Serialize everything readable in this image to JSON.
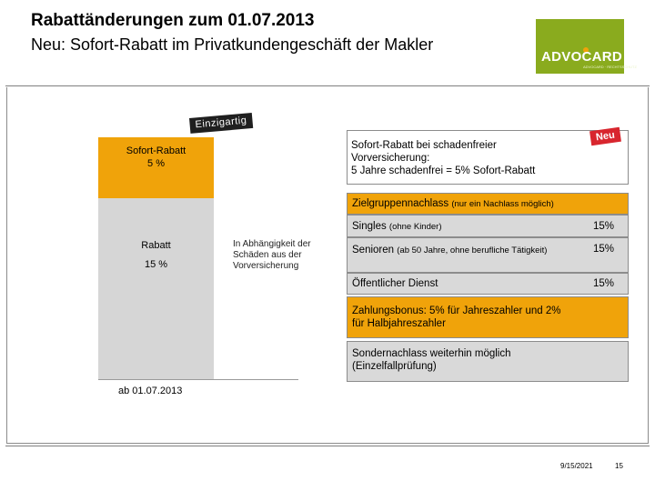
{
  "header": {
    "title": "Rabattänderungen zum 01.07.2013",
    "subtitle": "Neu: Sofort-Rabatt im Privatkundengeschäft der Makler"
  },
  "logo": {
    "text": "ADVOCARD",
    "subtext": "ADVOCARD · RECHTSSCHUTZ",
    "color": "#8aab1e"
  },
  "chart": {
    "top_segment": {
      "label_line1": "Sofort-Rabatt",
      "label_line2": "5 %",
      "color": "#f0a30a"
    },
    "bottom_segment": {
      "label_line1": "Rabatt",
      "label_line2": "15 %",
      "color": "#d6d6d6"
    },
    "xlabel": "ab 01.07.2013",
    "badge": "Einzigartig",
    "note": "In Abhängigkeit der Schäden aus der Vorversicherung"
  },
  "neu_badge": "Neu",
  "sofort_box": {
    "line1": "Sofort-Rabatt bei schadenfreier",
    "line2": "Vorversicherung:",
    "line3": "5 Jahre schadenfrei = 5% Sofort-Rabatt"
  },
  "zielgruppe": {
    "title": "Zielgruppennachlass",
    "note": "(nur ein Nachlass möglich)",
    "rows": [
      {
        "label": "Singles",
        "sub": "(ohne Kinder)",
        "pct": "15%"
      },
      {
        "label": "Senioren",
        "sub": "(ab 50 Jahre, ohne berufliche Tätigkeit)",
        "pct": "15%"
      },
      {
        "label": "Öffentlicher Dienst",
        "sub": "",
        "pct": "15%"
      }
    ]
  },
  "zahlungsbonus": {
    "line1": "Zahlungsbonus: 5% für Jahreszahler und 2%",
    "line2": "für Halbjahreszahler"
  },
  "sondernachlass": {
    "line1": "Sondernachlass weiterhin möglich",
    "line2": "(Einzelfallprüfung)"
  },
  "footer": {
    "date": "9/15/2021",
    "page": "15"
  },
  "colors": {
    "orange": "#f0a30a",
    "gray": "#d9d9d9",
    "red": "#d8262e"
  }
}
